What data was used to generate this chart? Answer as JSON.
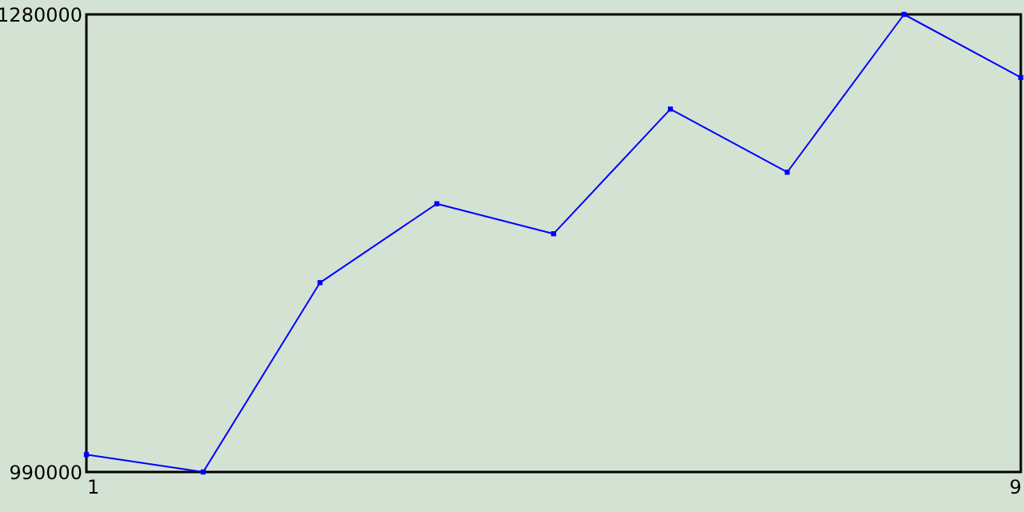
{
  "chart_data": {
    "type": "line",
    "x": [
      1,
      2,
      3,
      4,
      5,
      6,
      7,
      8,
      9
    ],
    "series": [
      {
        "color": "#0000ff",
        "values": [
          1001000,
          990000,
          1110000,
          1160000,
          1141000,
          1220000,
          1180000,
          1280000,
          1240000
        ]
      }
    ],
    "xlim": [
      1,
      9
    ],
    "xticks": [
      1,
      9
    ],
    "ylim": [
      990000,
      1280000
    ],
    "yticks": [
      990000,
      1280000
    ],
    "grid": false,
    "marker": "square",
    "line_style": "solid"
  }
}
